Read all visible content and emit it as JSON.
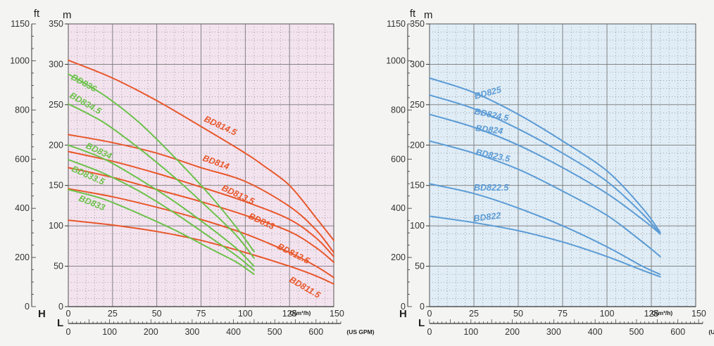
{
  "chart_data": [
    {
      "type": "line",
      "panel_color": "#f3e3ef",
      "y_axis_m": {
        "unit": "m",
        "range": [
          0,
          350
        ],
        "ticks": [
          0,
          50,
          100,
          150,
          200,
          250,
          300,
          350
        ]
      },
      "y_axis_ft": {
        "unit": "ft",
        "range": [
          0,
          1150
        ],
        "ticks": [
          "0",
          "200",
          "400",
          "600",
          "800",
          "1000",
          "1150"
        ]
      },
      "x_axis_q": {
        "label": "H",
        "unit": "Q(m³/h)",
        "range": [
          0,
          150
        ],
        "ticks": [
          "0",
          "25",
          "50",
          "75",
          "100",
          "125",
          "150"
        ]
      },
      "x_axis_gpm": {
        "label": "L",
        "unit": "(US GPM)",
        "range": [
          0,
          660
        ],
        "ticks": [
          "0",
          "100",
          "200",
          "300",
          "400",
          "500",
          "600"
        ]
      },
      "series": [
        {
          "name": "BD814.5",
          "color": "#e8572a",
          "points": [
            [
              0,
              305
            ],
            [
              25,
              283
            ],
            [
              50,
              255
            ],
            [
              75,
              223
            ],
            [
              100,
              190
            ],
            [
              110,
              175
            ],
            [
              125,
              150
            ],
            [
              140,
              110
            ],
            [
              150,
              82
            ]
          ]
        },
        {
          "name": "BD814",
          "color": "#e8572a",
          "points": [
            [
              0,
              213
            ],
            [
              25,
              203
            ],
            [
              50,
              190
            ],
            [
              75,
              172
            ],
            [
              100,
              155
            ],
            [
              125,
              124
            ],
            [
              140,
              95
            ],
            [
              150,
              67
            ]
          ]
        },
        {
          "name": "BD813.5",
          "color": "#e8572a",
          "points": [
            [
              0,
              192
            ],
            [
              25,
              180
            ],
            [
              50,
              165
            ],
            [
              75,
              148
            ],
            [
              100,
              130
            ],
            [
              125,
              108
            ],
            [
              140,
              85
            ],
            [
              150,
              62
            ]
          ]
        },
        {
          "name": "BD813",
          "color": "#e8572a",
          "points": [
            [
              0,
              172
            ],
            [
              25,
              160
            ],
            [
              50,
              145
            ],
            [
              75,
              130
            ],
            [
              100,
              113
            ],
            [
              125,
              93
            ],
            [
              140,
              73
            ],
            [
              150,
              55
            ]
          ]
        },
        {
          "name": "BD812.5",
          "color": "#e8572a",
          "points": [
            [
              0,
              146
            ],
            [
              25,
              136
            ],
            [
              50,
              123
            ],
            [
              75,
              108
            ],
            [
              100,
              90
            ],
            [
              125,
              67
            ],
            [
              140,
              50
            ],
            [
              150,
              36
            ]
          ]
        },
        {
          "name": "BD811.5",
          "color": "#e8572a",
          "points": [
            [
              0,
              107
            ],
            [
              25,
              101
            ],
            [
              50,
              93
            ],
            [
              75,
              82
            ],
            [
              100,
              67
            ],
            [
              125,
              50
            ],
            [
              140,
              38
            ],
            [
              150,
              28
            ]
          ]
        },
        {
          "name": "BD836",
          "color": "#6cc24a",
          "points": [
            [
              0,
              288
            ],
            [
              20,
              262
            ],
            [
              40,
              228
            ],
            [
              60,
              185
            ],
            [
              80,
              138
            ],
            [
              95,
              98
            ],
            [
              105,
              68
            ]
          ]
        },
        {
          "name": "BD834.5",
          "color": "#6cc24a",
          "points": [
            [
              0,
              251
            ],
            [
              20,
              228
            ],
            [
              40,
              196
            ],
            [
              60,
              160
            ],
            [
              80,
              120
            ],
            [
              95,
              88
            ],
            [
              105,
              60
            ]
          ]
        },
        {
          "name": "BD834",
          "color": "#6cc24a",
          "points": [
            [
              0,
              200
            ],
            [
              20,
              183
            ],
            [
              40,
              158
            ],
            [
              60,
              130
            ],
            [
              80,
              98
            ],
            [
              95,
              72
            ],
            [
              105,
              50
            ]
          ]
        },
        {
          "name": "BD833.5",
          "color": "#6cc24a",
          "points": [
            [
              0,
              182
            ],
            [
              20,
              165
            ],
            [
              40,
              143
            ],
            [
              60,
              116
            ],
            [
              80,
              86
            ],
            [
              95,
              63
            ],
            [
              105,
              45
            ]
          ]
        },
        {
          "name": "BD833",
          "color": "#6cc24a",
          "points": [
            [
              0,
              145
            ],
            [
              20,
              133
            ],
            [
              40,
              115
            ],
            [
              60,
              95
            ],
            [
              80,
              72
            ],
            [
              95,
              55
            ],
            [
              105,
              40
            ]
          ]
        }
      ],
      "labels": [
        "BD836",
        "BD834.5",
        "BD834",
        "BD833.5",
        "BD833",
        "BD814.5",
        "BD814",
        "BD813.5",
        "BD813",
        "BD812.5",
        "BD811.5"
      ]
    },
    {
      "type": "line",
      "panel_color": "#e0edf6",
      "y_axis_m": {
        "unit": "m",
        "range": [
          0,
          350
        ],
        "ticks": [
          0,
          50,
          100,
          150,
          200,
          250,
          300,
          350
        ]
      },
      "y_axis_ft": {
        "unit": "ft",
        "range": [
          0,
          1150
        ],
        "ticks": [
          "0",
          "200",
          "400",
          "600",
          "800",
          "1000",
          "1150"
        ]
      },
      "x_axis_q": {
        "label": "H",
        "unit": "Q(m³/h)",
        "range": [
          0,
          150
        ],
        "ticks": [
          "0",
          "25",
          "50",
          "75",
          "100",
          "125",
          "150"
        ]
      },
      "x_axis_gpm": {
        "label": "L",
        "unit": "(US GPM)",
        "range": [
          0,
          660
        ],
        "ticks": [
          "0",
          "100",
          "200",
          "300",
          "400",
          "500",
          "600"
        ]
      },
      "series": [
        {
          "name": "BD825",
          "color": "#5b9bd5",
          "points": [
            [
              0,
              283
            ],
            [
              25,
              265
            ],
            [
              50,
              238
            ],
            [
              75,
              205
            ],
            [
              100,
              168
            ],
            [
              120,
              122
            ],
            [
              130,
              92
            ]
          ]
        },
        {
          "name": "BD824.5",
          "color": "#5b9bd5",
          "points": [
            [
              0,
              262
            ],
            [
              25,
              245
            ],
            [
              50,
              220
            ],
            [
              75,
              190
            ],
            [
              100,
              155
            ],
            [
              120,
              115
            ],
            [
              130,
              90
            ]
          ]
        },
        {
          "name": "BD824",
          "color": "#5b9bd5",
          "points": [
            [
              0,
              238
            ],
            [
              25,
              222
            ],
            [
              50,
              200
            ],
            [
              75,
              172
            ],
            [
              100,
              140
            ],
            [
              120,
              108
            ],
            [
              130,
              90
            ]
          ]
        },
        {
          "name": "BD823.5",
          "color": "#5b9bd5",
          "points": [
            [
              0,
              205
            ],
            [
              25,
              190
            ],
            [
              50,
              170
            ],
            [
              75,
              143
            ],
            [
              100,
              113
            ],
            [
              120,
              80
            ],
            [
              130,
              62
            ]
          ]
        },
        {
          "name": "BD822.5",
          "color": "#5b9bd5",
          "points": [
            [
              0,
              152
            ],
            [
              25,
              140
            ],
            [
              50,
              122
            ],
            [
              75,
              100
            ],
            [
              100,
              74
            ],
            [
              120,
              50
            ],
            [
              130,
              40
            ]
          ]
        },
        {
          "name": "BD822",
          "color": "#5b9bd5",
          "points": [
            [
              0,
              112
            ],
            [
              25,
              104
            ],
            [
              50,
              94
            ],
            [
              75,
              80
            ],
            [
              100,
              62
            ],
            [
              120,
              45
            ],
            [
              130,
              37
            ]
          ]
        }
      ],
      "labels": [
        "BD825",
        "BD824.5",
        "BD824",
        "BD823.5",
        "BD822.5",
        "BD822"
      ]
    }
  ]
}
